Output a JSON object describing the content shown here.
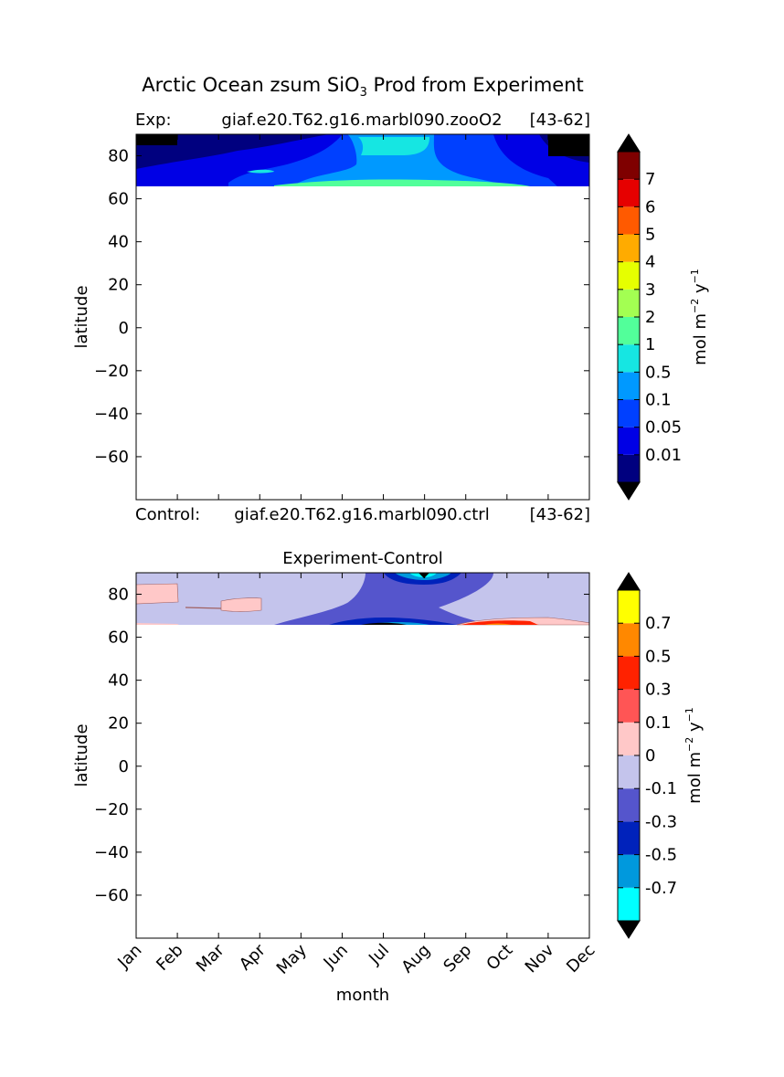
{
  "figure": {
    "title_prefix": "Arctic Ocean zsum SiO",
    "title_subscript": "3",
    "title_suffix": " Prod from Experiment"
  },
  "chart_data": [
    {
      "type": "heatmap",
      "panel": "experiment",
      "header": {
        "label": "Exp:",
        "case": "giaf.e20.T62.g16.marbl090.zooO2",
        "years": "[43-62]"
      },
      "xlabel": "",
      "ylabel": "latitude",
      "ylim": [
        -80,
        90
      ],
      "yticks": [
        80,
        60,
        40,
        20,
        0,
        -20,
        -40,
        -60
      ],
      "ytick_labels": [
        "80",
        "60",
        "40",
        "20",
        "0",
        "−20",
        "−40",
        "−60"
      ],
      "xticks_months": [
        "Jan",
        "Feb",
        "Mar",
        "Apr",
        "May",
        "Jun",
        "Jul",
        "Aug",
        "Sep",
        "Oct",
        "Nov",
        "Dec"
      ],
      "xtick_labels_shown": false,
      "data_region_lat": [
        66,
        90
      ],
      "background_fill": "level_0",
      "contour_regions": [
        {
          "level": "level_1",
          "lat_bands": [
            [
              78,
              82
            ]
          ],
          "note": "patches",
          "months": [
            [
              0.0,
              11.0
            ]
          ]
        }
      ],
      "colorbar": {
        "unit_base": "mol m",
        "unit_exp1": "−2",
        "unit_mid": " y",
        "unit_exp2": "−1",
        "extend": "both",
        "tick_labels": [
          "7",
          "6",
          "5",
          "4",
          "3",
          "2",
          "1",
          "0.5",
          "0.1",
          "0.05",
          "0.01"
        ],
        "colors": [
          "#00007f",
          "#0000e5",
          "#0040ff",
          "#0099ff",
          "#16e6e2",
          "#52ff9a",
          "#a3ff52",
          "#e6ff00",
          "#ffab00",
          "#ff5a00",
          "#e60000",
          "#7f0000"
        ],
        "under_color": "#000000",
        "over_color": "#000000"
      }
    },
    {
      "type": "heatmap",
      "panel": "difference",
      "title": "Experiment-Control",
      "header": {
        "label": "Control:",
        "case": "giaf.e20.T62.g16.marbl090.ctrl",
        "years": "[43-62]"
      },
      "xlabel": "month",
      "ylabel": "latitude",
      "ylim": [
        -80,
        90
      ],
      "yticks": [
        80,
        60,
        40,
        20,
        0,
        -20,
        -40,
        -60
      ],
      "ytick_labels": [
        "80",
        "60",
        "40",
        "20",
        "0",
        "−20",
        "−40",
        "−60"
      ],
      "xticks_months": [
        "Jan",
        "Feb",
        "Mar",
        "Apr",
        "May",
        "Jun",
        "Jul",
        "Aug",
        "Sep",
        "Oct",
        "Nov",
        "Dec"
      ],
      "xtick_labels_shown": true,
      "data_region_lat": [
        66,
        90
      ],
      "colorbar": {
        "unit_base": "mol m",
        "unit_exp1": "−2",
        "unit_mid": " y",
        "unit_exp2": "−1",
        "extend": "both",
        "tick_labels": [
          "0.7",
          "0.5",
          "0.3",
          "0.1",
          "0",
          "-0.1",
          "-0.3",
          "-0.5",
          "-0.7"
        ],
        "colors": [
          "#00ffff",
          "#0099dd",
          "#0022bb",
          "#5555cc",
          "#c4c4ec",
          "#ffc8c8",
          "#ff5555",
          "#ff2200",
          "#ff8800",
          "#ffff00"
        ],
        "under_color": "#000000",
        "over_color": "#000000"
      }
    }
  ]
}
